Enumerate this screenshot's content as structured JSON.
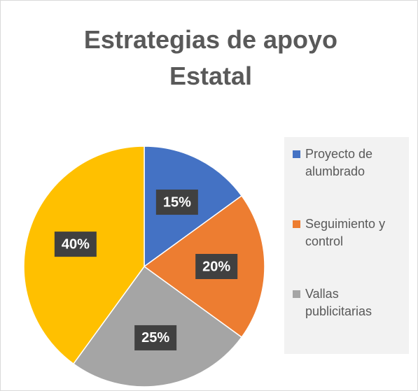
{
  "chart_data": {
    "type": "pie",
    "title": "Estrategias de apoyo Estatal",
    "categories": [
      "Proyecto de alumbrado",
      "Seguimiento y control",
      "Vallas publicitarias",
      ""
    ],
    "values": [
      15,
      20,
      25,
      40
    ],
    "value_labels": [
      "15%",
      "20%",
      "25%",
      "40%"
    ],
    "colors": [
      "#4472c4",
      "#ed7d31",
      "#a5a5a5",
      "#ffc000"
    ],
    "legend": "right"
  }
}
